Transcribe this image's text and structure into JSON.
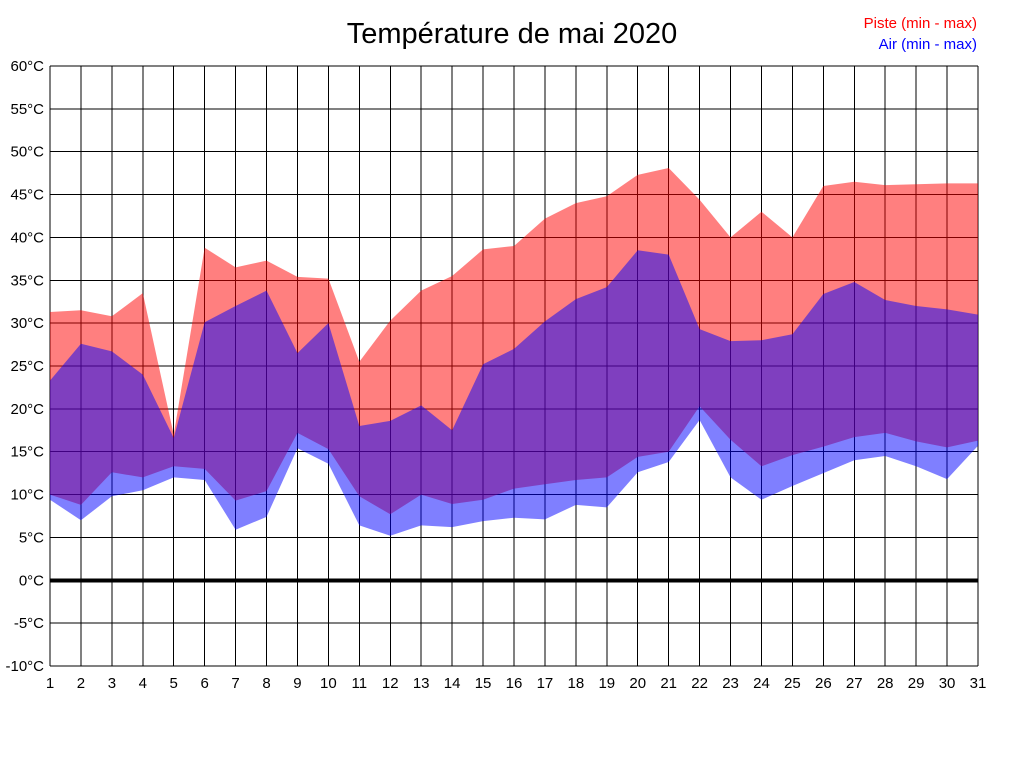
{
  "title": "Température de mai 2020",
  "legend": {
    "piste_label": "Piste (min - max)",
    "air_label": "Air (min - max)"
  },
  "colors": {
    "piste": "#FF0000",
    "air": "#0000FF",
    "grid": "#000000",
    "text": "#000000",
    "background": "#FFFFFF"
  },
  "chart_data": {
    "type": "area",
    "title": "Température de mai 2020",
    "xlabel": "",
    "ylabel": "",
    "y_unit": "°C",
    "ylim": [
      -10,
      60
    ],
    "ytick_step": 5,
    "grid": true,
    "zero_line": true,
    "fill_opacity": 0.5,
    "legend_position": "top-right",
    "x": [
      1,
      2,
      3,
      4,
      5,
      6,
      7,
      8,
      9,
      10,
      11,
      12,
      13,
      14,
      15,
      16,
      17,
      18,
      19,
      20,
      21,
      22,
      23,
      24,
      25,
      26,
      27,
      28,
      29,
      30,
      31
    ],
    "series": [
      {
        "name": "Piste (min - max)",
        "color": "#FF0000",
        "area_name": "piste-area",
        "min": [
          10.0,
          8.8,
          12.6,
          12.0,
          13.3,
          13.0,
          9.3,
          10.4,
          17.2,
          15.3,
          9.8,
          7.7,
          10.0,
          8.9,
          9.4,
          10.7,
          11.2,
          11.7,
          12.0,
          14.4,
          15.0,
          20.3,
          16.4,
          13.3,
          14.6,
          15.6,
          16.7,
          17.2,
          16.2,
          15.5,
          16.3
        ],
        "max": [
          31.3,
          31.5,
          30.8,
          33.5,
          17.0,
          38.8,
          36.5,
          37.3,
          35.4,
          35.2,
          25.5,
          30.3,
          33.8,
          35.5,
          38.6,
          39.0,
          42.2,
          44.0,
          44.8,
          47.3,
          48.1,
          44.4,
          40.0,
          43.0,
          40.0,
          46.0,
          46.5,
          46.1,
          46.2,
          46.3,
          46.3
        ]
      },
      {
        "name": "Air (min - max)",
        "color": "#0000FF",
        "area_name": "air-area",
        "min": [
          9.4,
          7.0,
          9.8,
          10.5,
          12.0,
          11.7,
          5.9,
          7.4,
          15.4,
          13.6,
          6.4,
          5.2,
          6.4,
          6.2,
          6.9,
          7.3,
          7.1,
          8.8,
          8.5,
          12.6,
          13.8,
          18.7,
          12.0,
          9.4,
          11.0,
          12.5,
          14.0,
          14.5,
          13.3,
          11.8,
          15.7
        ],
        "max": [
          23.3,
          27.6,
          26.7,
          24.0,
          16.6,
          30.1,
          32.0,
          33.8,
          26.5,
          30.0,
          18.0,
          18.6,
          20.4,
          17.5,
          25.2,
          27.0,
          30.2,
          32.8,
          34.2,
          38.5,
          38.0,
          29.3,
          27.9,
          28.0,
          28.7,
          33.4,
          34.8,
          32.7,
          32.0,
          31.6,
          31.0
        ]
      }
    ]
  }
}
